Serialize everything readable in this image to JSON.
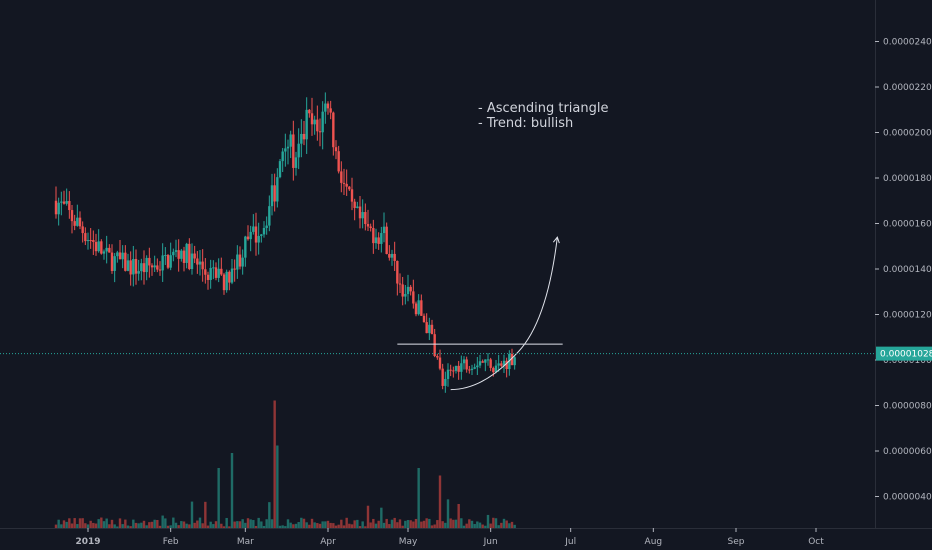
{
  "chart_data": {
    "type": "candlestick",
    "title": "",
    "xlabel": "",
    "ylabel": "",
    "x_range": [
      "2019-01-01",
      "2019-10-25"
    ],
    "ylim": [
      3.3e-06,
      2.45e-05
    ],
    "y_ticks": [
      "0.00002400",
      "0.00002200",
      "0.00002000",
      "0.00001800",
      "0.00001600",
      "0.00001400",
      "0.00001200",
      "0.00001000",
      "0.00000800",
      "0.00000600",
      "0.00000400"
    ],
    "x_ticks": [
      {
        "label": "2019",
        "date": "2019-01-01",
        "bold": true
      },
      {
        "label": "Feb",
        "date": "2019-02-01",
        "bold": false
      },
      {
        "label": "Mar",
        "date": "2019-03-01",
        "bold": false
      },
      {
        "label": "Apr",
        "date": "2019-04-01",
        "bold": false
      },
      {
        "label": "May",
        "date": "2019-05-01",
        "bold": false
      },
      {
        "label": "Jun",
        "date": "2019-06-01",
        "bold": false
      },
      {
        "label": "Jul",
        "date": "2019-07-01",
        "bold": false
      },
      {
        "label": "Aug",
        "date": "2019-08-01",
        "bold": false
      },
      {
        "label": "Sep",
        "date": "2019-09-01",
        "bold": false
      },
      {
        "label": "Oct",
        "date": "2019-10-01",
        "bold": false
      }
    ],
    "last_price": {
      "value": "0.00001028",
      "numeric": 1.028e-05
    },
    "close_series_anchors": [
      {
        "date": "2018-12-20",
        "close": 1.7e-05
      },
      {
        "date": "2018-12-28",
        "close": 1.6e-05
      },
      {
        "date": "2019-01-08",
        "close": 1.45e-05
      },
      {
        "date": "2019-01-20",
        "close": 1.4e-05
      },
      {
        "date": "2019-01-28",
        "close": 1.42e-05
      },
      {
        "date": "2019-02-05",
        "close": 1.48e-05
      },
      {
        "date": "2019-02-15",
        "close": 1.38e-05
      },
      {
        "date": "2019-02-22",
        "close": 1.35e-05
      },
      {
        "date": "2019-03-01",
        "close": 1.5e-05
      },
      {
        "date": "2019-03-08",
        "close": 1.6e-05
      },
      {
        "date": "2019-03-12",
        "close": 1.75e-05
      },
      {
        "date": "2019-03-16",
        "close": 2e-05
      },
      {
        "date": "2019-03-20",
        "close": 1.85e-05
      },
      {
        "date": "2019-03-24",
        "close": 2.05e-05
      },
      {
        "date": "2019-03-28",
        "close": 2e-05
      },
      {
        "date": "2019-04-01",
        "close": 2.15e-05
      },
      {
        "date": "2019-04-04",
        "close": 1.9e-05
      },
      {
        "date": "2019-04-10",
        "close": 1.65e-05
      },
      {
        "date": "2019-04-16",
        "close": 1.57e-05
      },
      {
        "date": "2019-04-22",
        "close": 1.55e-05
      },
      {
        "date": "2019-04-28",
        "close": 1.33e-05
      },
      {
        "date": "2019-05-05",
        "close": 1.22e-05
      },
      {
        "date": "2019-05-10",
        "close": 1.1e-05
      },
      {
        "date": "2019-05-14",
        "close": 9e-06
      },
      {
        "date": "2019-05-20",
        "close": 9.8e-06
      },
      {
        "date": "2019-05-28",
        "close": 1e-05
      },
      {
        "date": "2019-06-04",
        "close": 9.7e-06
      },
      {
        "date": "2019-06-10",
        "close": 1.02e-05
      }
    ],
    "volume_spikes": [
      {
        "date": "2019-03-12",
        "ratio": 0.85
      },
      {
        "date": "2019-03-13",
        "ratio": 0.55
      },
      {
        "date": "2019-02-19",
        "ratio": 0.4
      },
      {
        "date": "2019-02-24",
        "ratio": 0.5
      },
      {
        "date": "2019-05-05",
        "ratio": 0.4
      },
      {
        "date": "2019-05-13",
        "ratio": 0.35
      }
    ],
    "annotations": {
      "text_lines": [
        "- Ascending triangle",
        "- Trend: bullish"
      ],
      "resistance_line": {
        "from": "2019-04-27",
        "to": "2019-06-28",
        "value": 1.07e-05
      },
      "support_curve": {
        "from": "2019-05-17",
        "to": "2019-06-10",
        "from_value": 8.7e-06,
        "to_value": 1.02e-05
      },
      "projection_arrow": {
        "from": "2019-06-10",
        "to": "2019-06-26",
        "from_value": 1.02e-05,
        "to_value": 1.54e-05
      }
    },
    "colors": {
      "background": "#131722",
      "up": "#26a69a",
      "down": "#ef5350",
      "up_volume": "#1f6b66",
      "down_volume": "#8f3536",
      "last_price_line": "#26a69a",
      "drawing": "#e0e3eb",
      "axis_text": "#b2b5be"
    }
  }
}
